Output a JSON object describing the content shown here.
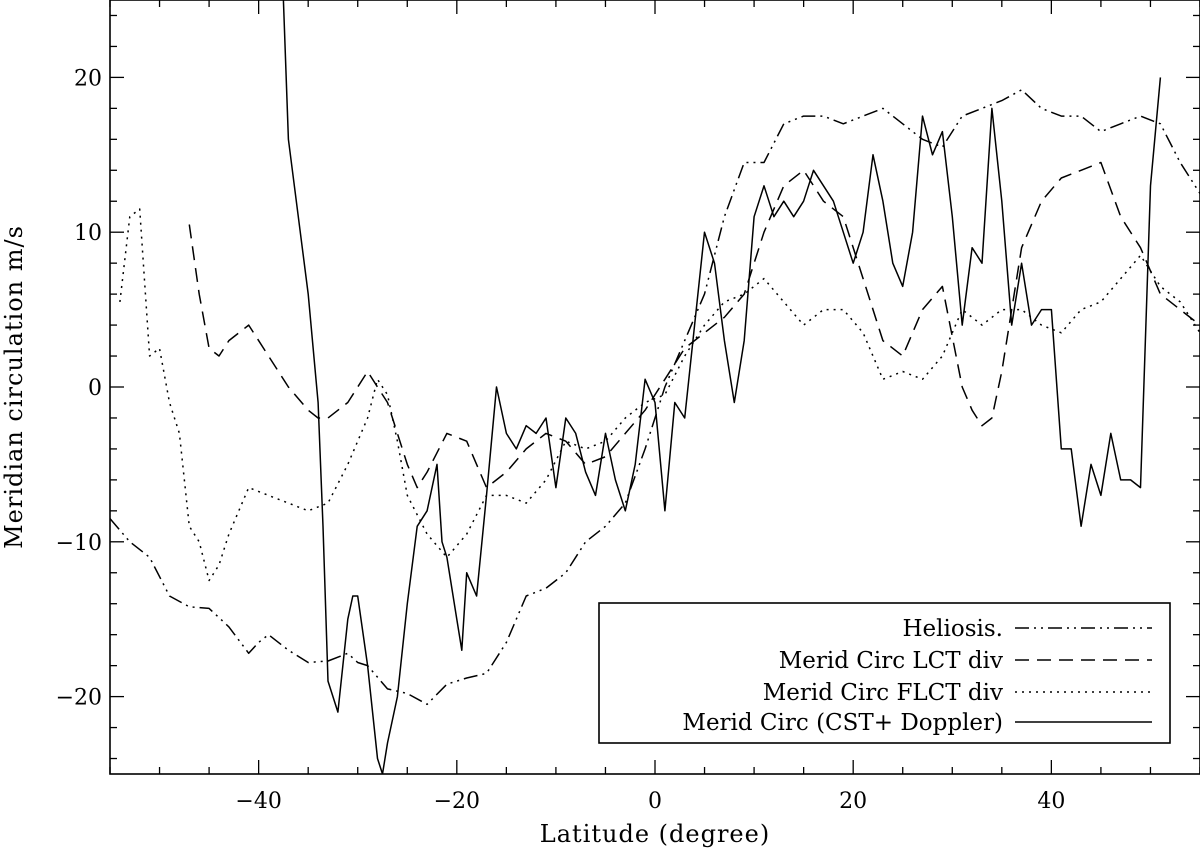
{
  "chart_data": {
    "type": "line",
    "xlabel": "Latitude (degree)",
    "ylabel": "Meridian circulation m/s",
    "xlim": [
      -55,
      55
    ],
    "ylim": [
      -25,
      25
    ],
    "xticks": [
      -40,
      -20,
      0,
      20,
      40
    ],
    "yticks": [
      -20,
      -10,
      0,
      10,
      20
    ],
    "x_tick_labels": [
      "−40",
      "−20",
      "0",
      "20",
      "40"
    ],
    "y_tick_labels": [
      "−20",
      "−10",
      "0",
      "10",
      "20"
    ],
    "legend_position": "bottom-right",
    "series": [
      {
        "name": "Heliosis.",
        "style": "dash-dot-dot",
        "x": [
          -55,
          -53,
          -51,
          -49,
          -47,
          -45,
          -43,
          -41,
          -40,
          -39,
          -37,
          -35,
          -33,
          -31,
          -30,
          -29,
          -27,
          -25,
          -23,
          -21,
          -19,
          -17,
          -15,
          -13,
          -11,
          -9,
          -7,
          -5,
          -3,
          -1,
          1,
          3,
          5,
          7,
          9,
          11,
          13,
          15,
          17,
          19,
          21,
          23,
          25,
          27,
          29,
          31,
          33,
          35,
          37,
          39,
          41,
          43,
          45,
          47,
          49,
          51,
          53,
          55
        ],
        "y": [
          -8.5,
          -10,
          -11,
          -13.5,
          -14.2,
          -14.3,
          -15.5,
          -17.2,
          -16.5,
          -16,
          -17,
          -17.8,
          -17.7,
          -17.2,
          -17.8,
          -18,
          -19.5,
          -19.8,
          -20.5,
          -19.2,
          -18.8,
          -18.5,
          -16.5,
          -13.5,
          -13,
          -12,
          -10,
          -9,
          -7.5,
          -4,
          0,
          3,
          6,
          11,
          14.5,
          14.5,
          17,
          17.5,
          17.5,
          17,
          17.5,
          18,
          17,
          16,
          15.5,
          17.5,
          18,
          18.5,
          19.2,
          18,
          17.5,
          17.5,
          16.5,
          17,
          17.5,
          17,
          14.5,
          12.5
        ]
      },
      {
        "name": "Merid Circ LCT div",
        "style": "dashed",
        "x": [
          -47,
          -46,
          -45,
          -44,
          -43,
          -41,
          -39,
          -37,
          -35,
          -34,
          -33,
          -31,
          -29,
          -28,
          -27,
          -26,
          -25,
          -24,
          -23,
          -21,
          -19,
          -17,
          -15,
          -13,
          -11,
          -9,
          -7,
          -5,
          -3,
          -1,
          1,
          3,
          5,
          7,
          9,
          11,
          13,
          15,
          17,
          19,
          21,
          23,
          25,
          27,
          29,
          31,
          32,
          33,
          34,
          35,
          37,
          39,
          41,
          43,
          45,
          47,
          49,
          51,
          53,
          55
        ],
        "y": [
          10.5,
          6,
          2.5,
          2,
          3,
          4,
          2,
          0,
          -1.5,
          -2,
          -2,
          -1,
          1,
          0,
          -1,
          -3,
          -5,
          -6.5,
          -5.5,
          -3,
          -3.5,
          -6.5,
          -5.5,
          -4,
          -3,
          -3.5,
          -5,
          -4.5,
          -3,
          -1.5,
          0.5,
          2.5,
          3.5,
          4.5,
          6,
          10,
          13,
          14,
          12,
          11,
          7,
          3,
          2,
          5,
          6.5,
          0,
          -1.5,
          -2.5,
          -2,
          1,
          9,
          12,
          13.5,
          14,
          14.5,
          11,
          9,
          6,
          5,
          4
        ]
      },
      {
        "name": "Merid Circ FLCT div",
        "style": "dotted",
        "x": [
          -54,
          -53,
          -52,
          -51,
          -50,
          -49,
          -48,
          -47,
          -46,
          -45,
          -44,
          -43,
          -41,
          -39,
          -37,
          -35,
          -33,
          -31,
          -29,
          -28,
          -27,
          -26,
          -25,
          -23,
          -21,
          -19,
          -17,
          -15,
          -13,
          -11,
          -9,
          -7,
          -5,
          -3,
          -1,
          1,
          3,
          5,
          7,
          9,
          11,
          13,
          15,
          17,
          19,
          21,
          23,
          25,
          27,
          29,
          31,
          33,
          35,
          37,
          39,
          41,
          43,
          45,
          47,
          49,
          51,
          53,
          55
        ],
        "y": [
          5.5,
          11,
          11.5,
          2,
          2.5,
          -1,
          -3,
          -9,
          -10,
          -12.5,
          -11.5,
          -9.5,
          -6.5,
          -7,
          -7.5,
          -8,
          -7.5,
          -5,
          -2,
          0.5,
          -0.5,
          -3.5,
          -7,
          -9.5,
          -11,
          -9.5,
          -7,
          -7,
          -7.5,
          -6,
          -3.5,
          -4,
          -3.5,
          -2,
          -1,
          -0.5,
          2,
          4,
          5.5,
          6,
          7,
          5.5,
          4,
          5,
          5,
          3.5,
          0.5,
          1,
          0.5,
          2,
          5,
          4,
          5,
          5,
          4,
          3.5,
          5,
          5.5,
          7,
          8.5,
          6.5,
          5.5,
          3.5
        ]
      },
      {
        "name": "Merid Circ (CST+ Doppler)",
        "style": "solid",
        "x": [
          -37.5,
          -37,
          -36,
          -35,
          -34,
          -33.5,
          -33,
          -32,
          -31,
          -30.5,
          -30,
          -29,
          -28,
          -27.5,
          -27,
          -26,
          -25,
          -24,
          -23,
          -22,
          -21.5,
          -21,
          -20,
          -19.5,
          -19,
          -18,
          -17,
          -16,
          -15,
          -14,
          -13,
          -12,
          -11,
          -10,
          -9,
          -8,
          -7,
          -6,
          -5,
          -4,
          -3,
          -2,
          -1,
          0,
          1,
          2,
          3,
          4,
          5,
          6,
          7,
          8,
          9,
          10,
          11,
          12,
          13,
          14,
          15,
          16,
          17,
          18,
          19,
          20,
          21,
          22,
          23,
          24,
          25,
          26,
          27,
          28,
          29,
          30,
          31,
          32,
          33,
          34,
          35,
          36,
          37,
          38,
          39,
          40,
          41,
          42,
          43,
          44,
          45,
          46,
          47,
          48,
          49,
          50,
          51
        ],
        "y": [
          25,
          16,
          11,
          6,
          -1,
          -9,
          -19,
          -21,
          -15,
          -13.5,
          -13.5,
          -18,
          -24,
          -25,
          -23,
          -20,
          -14,
          -9,
          -8,
          -5,
          -10,
          -11,
          -15,
          -17,
          -12,
          -13.5,
          -7,
          0,
          -3,
          -4,
          -2.5,
          -3,
          -2,
          -6.5,
          -2,
          -3,
          -5.5,
          -7,
          -3,
          -6,
          -8,
          -5,
          0.5,
          -1,
          -8,
          -1,
          -2,
          4,
          10,
          8,
          3,
          -1,
          3,
          11,
          13,
          11,
          12,
          11,
          12,
          14,
          13,
          12,
          10,
          8,
          10,
          15,
          12,
          8,
          6.5,
          10,
          17.5,
          15,
          16.5,
          11,
          4,
          9,
          8,
          18,
          12,
          4,
          8,
          4,
          5,
          5,
          -4,
          -4,
          -9,
          -5,
          -7,
          -3,
          -6,
          -6,
          -6.5,
          13,
          20
        ]
      }
    ]
  }
}
